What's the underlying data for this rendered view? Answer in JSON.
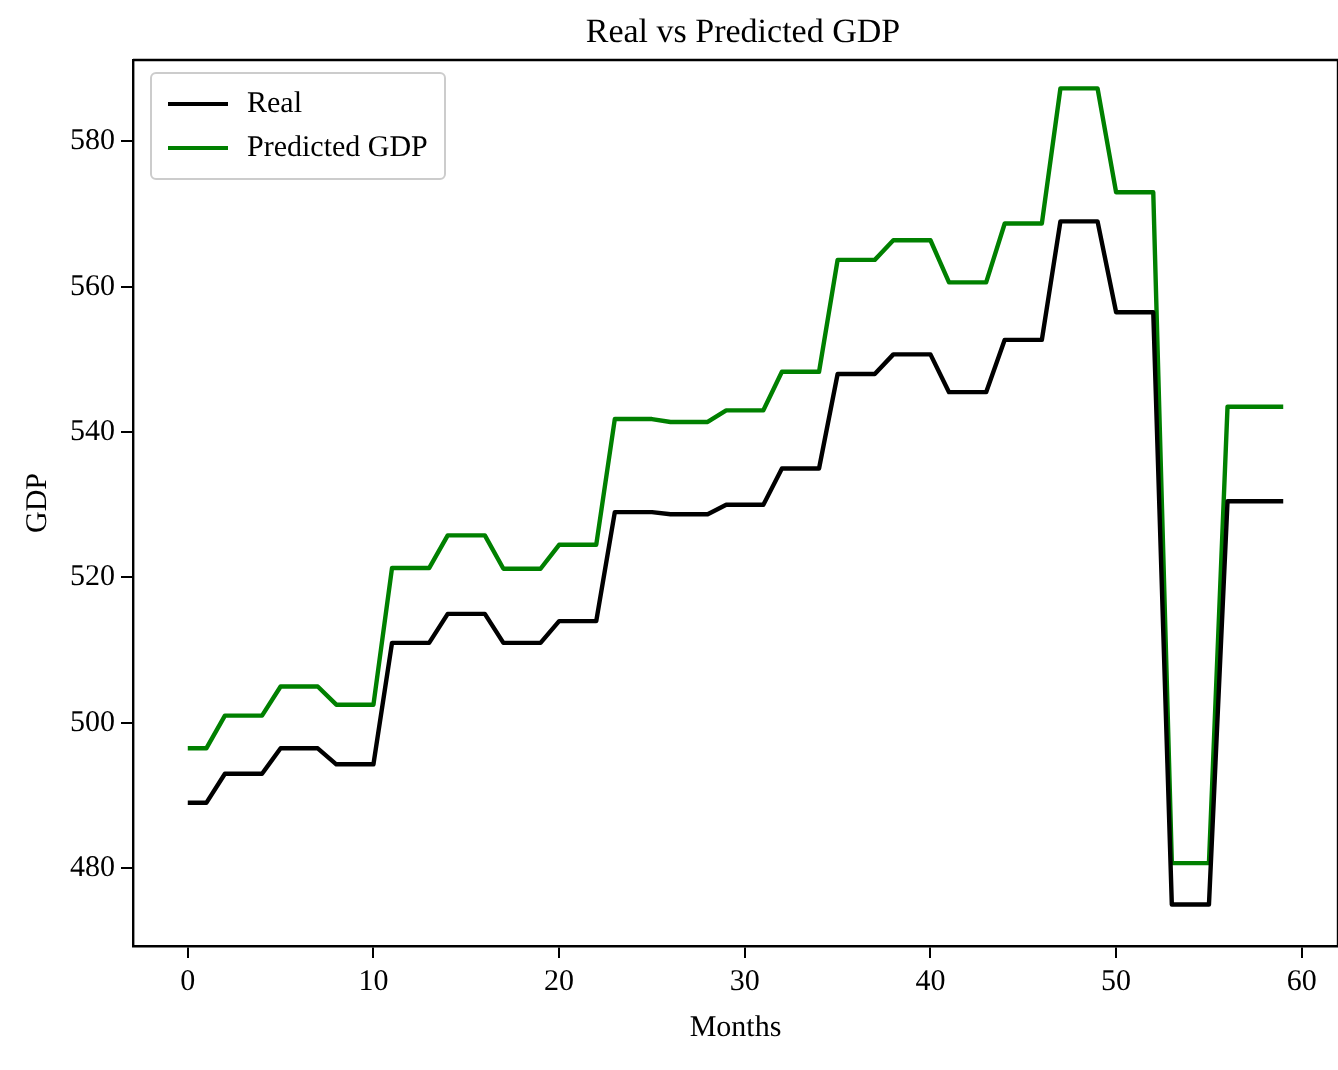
{
  "chart_data": {
    "type": "line",
    "title": "Real vs Predicted GDP",
    "xlabel": "Months",
    "ylabel": "GDP",
    "x": [
      0,
      1,
      2,
      3,
      4,
      5,
      6,
      7,
      8,
      9,
      10,
      11,
      12,
      13,
      14,
      15,
      16,
      17,
      18,
      19,
      20,
      21,
      22,
      23,
      24,
      25,
      26,
      27,
      28,
      29,
      30,
      31,
      32,
      33,
      34,
      35,
      36,
      37,
      38,
      39,
      40,
      41,
      42,
      43,
      44,
      45,
      46,
      47,
      48,
      49,
      50,
      51,
      52,
      53,
      54,
      55,
      56,
      57,
      58,
      59
    ],
    "series": [
      {
        "name": "Real",
        "color": "#000000",
        "values": [
          489,
          489,
          493,
          493,
          493,
          496.5,
          496.5,
          496.5,
          494.3,
          494.3,
          494.3,
          511,
          511,
          511,
          515,
          515,
          515,
          511,
          511,
          511,
          514,
          514,
          514,
          529,
          529,
          529,
          528.7,
          528.7,
          528.7,
          530,
          530,
          530,
          535,
          535,
          535,
          548,
          548,
          548,
          550.7,
          550.7,
          550.7,
          545.5,
          545.5,
          545.5,
          552.7,
          552.7,
          552.7,
          569,
          569,
          569,
          556.5,
          556.5,
          556.5,
          475,
          475,
          475,
          530.5,
          530.5,
          530.5,
          530.5
        ]
      },
      {
        "name": "Predicted GDP",
        "color": "#008000",
        "values": [
          496.5,
          496.5,
          501,
          501,
          501,
          505,
          505,
          505,
          502.5,
          502.5,
          502.5,
          521.3,
          521.3,
          521.3,
          525.8,
          525.8,
          525.8,
          521.2,
          521.2,
          521.2,
          524.5,
          524.5,
          524.5,
          541.8,
          541.8,
          541.8,
          541.4,
          541.4,
          541.4,
          543,
          543,
          543,
          548.3,
          548.3,
          548.3,
          563.7,
          563.7,
          563.7,
          566.4,
          566.4,
          566.4,
          560.6,
          560.6,
          560.6,
          568.7,
          568.7,
          568.7,
          587.3,
          587.3,
          587.3,
          573,
          573,
          573,
          480.7,
          480.7,
          480.7,
          543.5,
          543.5,
          543.5,
          543.5
        ]
      }
    ],
    "xlim": [
      -2.95,
      61.95
    ],
    "xticks": [
      0,
      10,
      20,
      30,
      40,
      50,
      60
    ],
    "ylim": [
      469.3,
      591.2
    ],
    "yticks": [
      480,
      500,
      520,
      540,
      560,
      580
    ],
    "grid": false,
    "legend": "top left",
    "marker": "none",
    "line_style": "solid"
  }
}
